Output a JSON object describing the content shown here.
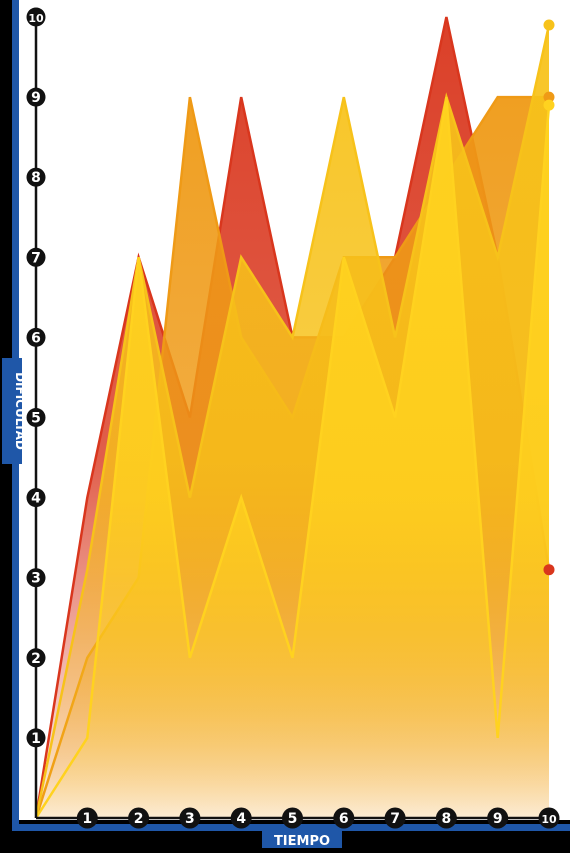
{
  "chart_data": {
    "type": "area",
    "xlabel": "TIEMPO",
    "ylabel": "DIFICULTAD",
    "x": [
      0,
      1,
      2,
      3,
      4,
      5,
      6,
      7,
      8,
      9,
      10
    ],
    "xticks": [
      "1",
      "2",
      "3",
      "4",
      "5",
      "6",
      "7",
      "8",
      "9",
      "10"
    ],
    "yticks": [
      "1",
      "2",
      "3",
      "4",
      "5",
      "6",
      "7",
      "8",
      "9",
      "10"
    ],
    "xlim": [
      0,
      10
    ],
    "ylim": [
      0,
      10
    ],
    "grid": false,
    "legend": "none",
    "background": "#ffffff",
    "axis_color": "#1f57a8",
    "series": [
      {
        "values": [
          0,
          4,
          7,
          5,
          9,
          6,
          6,
          7,
          10,
          7,
          3.1
        ],
        "color": "#d9361d"
      },
      {
        "values": [
          0,
          2,
          3,
          9,
          6,
          5,
          7,
          7,
          8,
          9,
          9
        ],
        "color": "#ef9a16"
      },
      {
        "values": [
          0,
          3.1,
          7,
          4,
          7,
          6,
          9,
          6,
          9,
          7,
          9.9
        ],
        "color": "#f7c21a"
      },
      {
        "values": [
          0,
          1,
          7,
          2,
          4,
          2,
          7,
          5,
          9,
          1,
          8.9
        ],
        "color": "#ffd21f"
      }
    ]
  }
}
